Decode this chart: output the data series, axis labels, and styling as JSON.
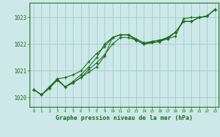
{
  "title": "Graphe pression niveau de la mer (hPa)",
  "background_color": "#cce8e8",
  "grid_color": "#aacccc",
  "line_color": "#1a6b1a",
  "marker_color": "#1a6b1a",
  "xlim": [
    -0.5,
    23.5
  ],
  "ylim": [
    1019.65,
    1023.55
  ],
  "yticks": [
    1020,
    1021,
    1022,
    1023
  ],
  "xticks": [
    0,
    1,
    2,
    3,
    4,
    5,
    6,
    7,
    8,
    9,
    10,
    11,
    12,
    13,
    14,
    15,
    16,
    17,
    18,
    19,
    20,
    21,
    22,
    23
  ],
  "series": [
    [
      1020.3,
      1020.1,
      1020.4,
      1020.7,
      1020.4,
      1020.55,
      1020.75,
      1021.05,
      1021.3,
      1021.6,
      1022.0,
      1022.25,
      1022.25,
      1022.15,
      1022.0,
      1022.05,
      1022.1,
      1022.2,
      1022.3,
      1022.95,
      1023.0,
      1023.0,
      1023.05,
      1023.3
    ],
    [
      1020.3,
      1020.1,
      1020.4,
      1020.65,
      1020.4,
      1020.6,
      1020.85,
      1021.15,
      1021.5,
      1022.0,
      1022.25,
      1022.35,
      1022.35,
      1022.2,
      1022.05,
      1022.1,
      1022.15,
      1022.2,
      1022.45,
      1022.85,
      1022.85,
      1023.0,
      1023.05,
      1023.3
    ],
    [
      1020.3,
      1020.1,
      1020.35,
      1020.7,
      1020.75,
      1020.85,
      1021.0,
      1021.35,
      1021.65,
      1021.9,
      1022.25,
      1022.35,
      1022.35,
      1022.15,
      1022.0,
      1022.05,
      1022.1,
      1022.25,
      1022.45,
      1022.85,
      1022.85,
      1023.0,
      1023.05,
      1023.3
    ],
    [
      1020.3,
      1020.1,
      1020.35,
      1020.65,
      1020.4,
      1020.55,
      1020.75,
      1020.95,
      1021.15,
      1021.55,
      1022.25,
      1022.35,
      1022.35,
      1022.15,
      1022.0,
      1022.1,
      1022.15,
      1022.25,
      1022.45,
      1022.85,
      1022.85,
      1023.0,
      1023.05,
      1023.3
    ]
  ]
}
